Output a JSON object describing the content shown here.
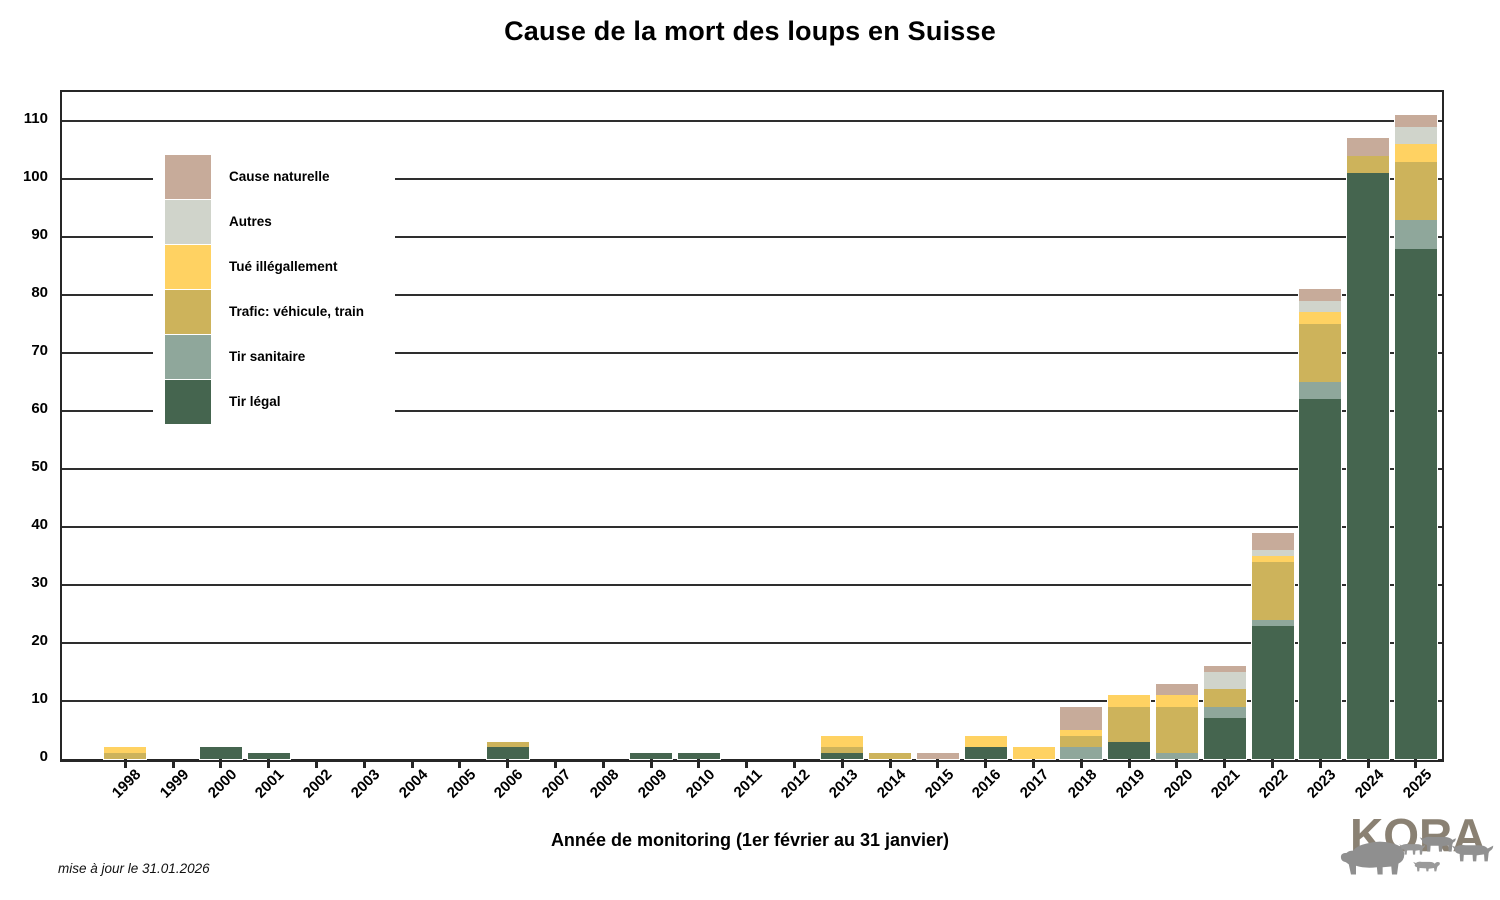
{
  "title": "Cause de la mort des loups en Suisse",
  "x_axis_label": "Année de monitoring (1er février au 31 janvier)",
  "footnote": "mise à jour le 31.01.2026",
  "logo": {
    "text": "KORA"
  },
  "chart_data": {
    "type": "bar",
    "stacked": true,
    "title": "Cause de la mort des loups en Suisse",
    "xlabel": "Année de monitoring (1er février au 31 janvier)",
    "ylabel": "",
    "ylim": [
      0,
      115
    ],
    "yticks": [
      0,
      10,
      20,
      30,
      40,
      50,
      60,
      70,
      80,
      90,
      100,
      110
    ],
    "grid": "horizontal",
    "legend_position": "upper-left",
    "legend_items_top_to_bottom": [
      "Cause naturelle",
      "Autres",
      "Tué illégallement",
      "Trafic: véhicule, train",
      "Tir sanitaire",
      "Tir légal"
    ],
    "categories": [
      "1998",
      "1999",
      "2000",
      "2001",
      "2002",
      "2003",
      "2004",
      "2005",
      "2006",
      "2007",
      "2008",
      "2009",
      "2010",
      "2011",
      "2012",
      "2013",
      "2014",
      "2015",
      "2016",
      "2017",
      "2018",
      "2019",
      "2020",
      "2021",
      "2022",
      "2023",
      "2024",
      "2025"
    ],
    "series": [
      {
        "name": "Tir légal",
        "color": "#45654F",
        "values": [
          0,
          0,
          2,
          1,
          0,
          0,
          0,
          0,
          2,
          0,
          0,
          1,
          1,
          0,
          0,
          1,
          0,
          0,
          2,
          0,
          0,
          3,
          0,
          7,
          23,
          62,
          101,
          88
        ]
      },
      {
        "name": "Tir sanitaire",
        "color": "#8FA79B",
        "values": [
          0,
          0,
          0,
          0,
          0,
          0,
          0,
          0,
          0,
          0,
          0,
          0,
          0,
          0,
          0,
          0,
          0,
          0,
          0,
          0,
          2,
          0,
          1,
          2,
          1,
          3,
          0,
          5
        ]
      },
      {
        "name": "Trafic: véhicule, train",
        "color": "#CDB35B",
        "values": [
          1,
          0,
          0,
          0,
          0,
          0,
          0,
          0,
          1,
          0,
          0,
          0,
          0,
          0,
          0,
          1,
          1,
          0,
          0,
          0,
          2,
          6,
          8,
          3,
          10,
          10,
          3,
          10
        ]
      },
      {
        "name": "Tué illégallement",
        "color": "#FFD262",
        "values": [
          1,
          0,
          0,
          0,
          0,
          0,
          0,
          0,
          0,
          0,
          0,
          0,
          0,
          0,
          0,
          2,
          0,
          0,
          2,
          2,
          1,
          2,
          2,
          0,
          1,
          2,
          0,
          3
        ]
      },
      {
        "name": "Autres",
        "color": "#D0D4CB",
        "values": [
          0,
          0,
          0,
          0,
          0,
          0,
          0,
          0,
          0,
          0,
          0,
          0,
          0,
          0,
          0,
          0,
          0,
          0,
          0,
          0,
          0,
          0,
          0,
          3,
          1,
          2,
          0,
          3
        ]
      },
      {
        "name": "Cause naturelle",
        "color": "#C7AB9A",
        "values": [
          0,
          0,
          0,
          0,
          0,
          0,
          0,
          0,
          0,
          0,
          0,
          0,
          0,
          0,
          0,
          0,
          0,
          1,
          0,
          0,
          4,
          0,
          2,
          1,
          3,
          2,
          3,
          2
        ]
      }
    ],
    "totals": [
      2,
      0,
      2,
      1,
      0,
      0,
      0,
      0,
      3,
      0,
      0,
      1,
      1,
      0,
      0,
      4,
      1,
      1,
      4,
      2,
      9,
      11,
      13,
      16,
      39,
      81,
      107,
      111
    ]
  },
  "colors": {
    "spine": "#262626",
    "gridline": "#2e2e2e",
    "logo_text": "#8a8173",
    "logo_animals": "#8f8f8f"
  }
}
